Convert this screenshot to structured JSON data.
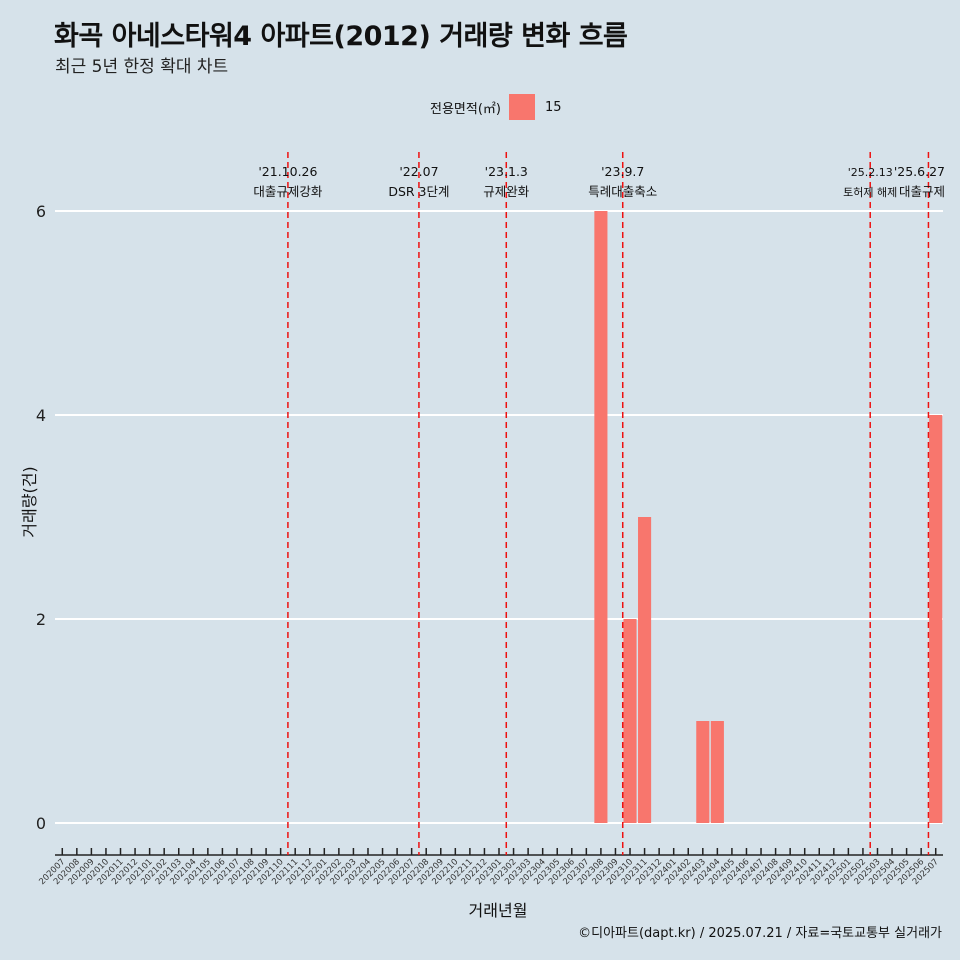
{
  "title": "화곡 아네스타워4 아파트(2012) 거래량 변화 흐름",
  "subtitle": "최근 5년 한정 확대 차트",
  "caption": "©디아파트(dapt.kr) / 2025.07.21 / 자료=국토교통부 실거래가",
  "legend": {
    "title": "전용면적(㎡)",
    "items": [
      {
        "label": "15",
        "color": "#f8766d"
      }
    ]
  },
  "colors": {
    "background": "#d6e2ea",
    "bar": "#f8766d",
    "event_line": "#ee1111",
    "grid": "#ffffff"
  },
  "chart_data": {
    "type": "bar",
    "title": "화곡 아네스타워4 아파트(2012) 거래량 변화 흐름",
    "subtitle": "최근 5년 한정 확대 차트",
    "xlabel": "거래년월",
    "ylabel": "거래량(건)",
    "ylim": [
      0,
      6
    ],
    "yticks": [
      0,
      2,
      4,
      6
    ],
    "grid": "horizontal major lines",
    "legend_position": "top",
    "categories": [
      "202007",
      "202008",
      "202009",
      "202010",
      "202011",
      "202012",
      "202101",
      "202102",
      "202103",
      "202104",
      "202105",
      "202106",
      "202107",
      "202108",
      "202109",
      "202110",
      "202111",
      "202112",
      "202201",
      "202202",
      "202203",
      "202204",
      "202205",
      "202206",
      "202207",
      "202208",
      "202209",
      "202210",
      "202211",
      "202212",
      "202301",
      "202302",
      "202303",
      "202304",
      "202305",
      "202306",
      "202307",
      "202308",
      "202309",
      "202310",
      "202311",
      "202312",
      "202401",
      "202402",
      "202403",
      "202404",
      "202405",
      "202406",
      "202407",
      "202408",
      "202409",
      "202410",
      "202411",
      "202412",
      "202501",
      "202502",
      "202503",
      "202504",
      "202505",
      "202506",
      "202507"
    ],
    "series": [
      {
        "name": "15",
        "values": [
          0,
          0,
          0,
          0,
          0,
          0,
          0,
          0,
          0,
          0,
          0,
          0,
          0,
          0,
          0,
          0,
          0,
          0,
          0,
          0,
          0,
          0,
          0,
          0,
          0,
          0,
          0,
          0,
          0,
          0,
          0,
          0,
          0,
          0,
          0,
          0,
          0,
          6,
          0,
          2,
          3,
          0,
          0,
          0,
          1,
          1,
          0,
          0,
          0,
          0,
          0,
          0,
          0,
          0,
          0,
          0,
          0,
          0,
          0,
          0,
          4
        ]
      }
    ],
    "events": [
      {
        "date": "'21.10.26",
        "label": "대출규제강화",
        "category": "202110"
      },
      {
        "date": "'22.07",
        "label": "DSR 3단계",
        "category": "202207"
      },
      {
        "date": "'23.1.3",
        "label": "규제완화",
        "category": "202301"
      },
      {
        "date": "'23.9.7",
        "label": "특례대출축소",
        "category": "202309"
      },
      {
        "date": "'25.2.13",
        "label": "토허제 해제",
        "category": "202502"
      },
      {
        "date": "'25.6.27",
        "label": "대출규제",
        "category": "202506"
      }
    ]
  }
}
